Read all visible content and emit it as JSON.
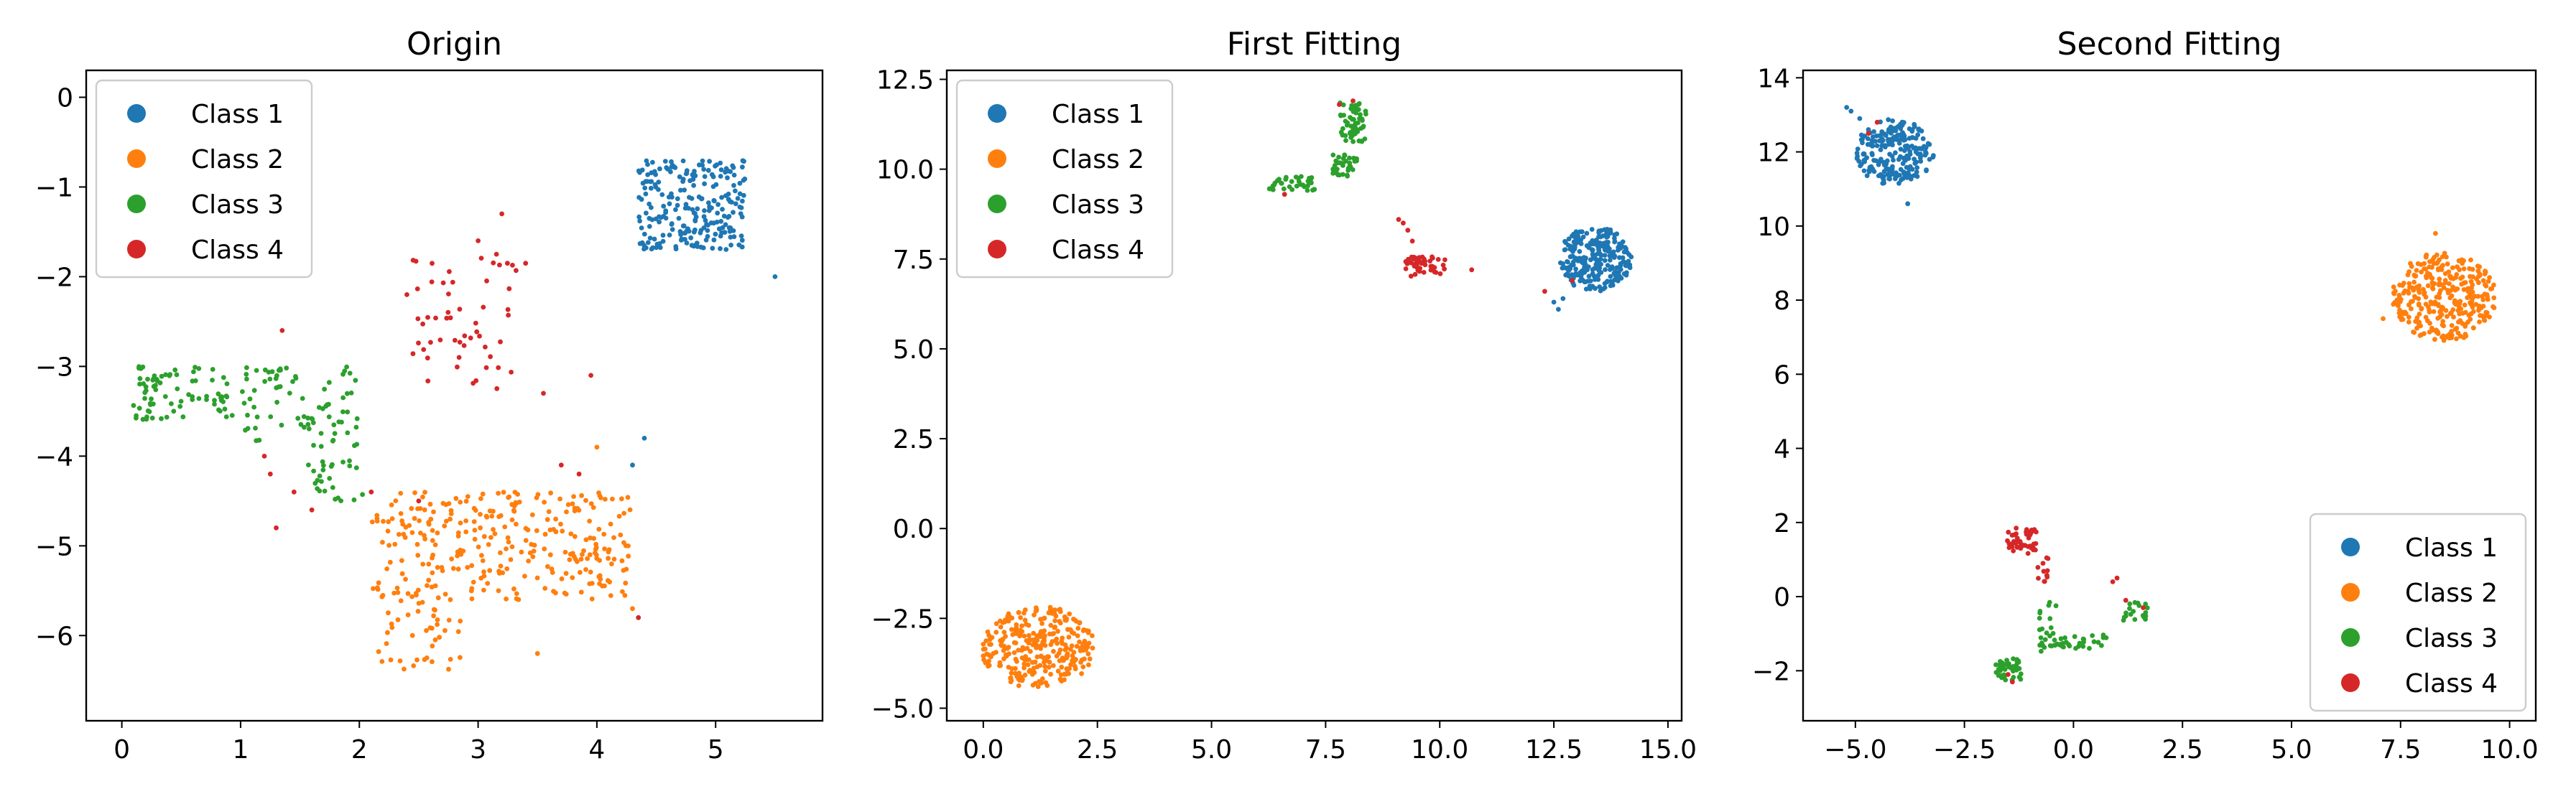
{
  "chart_data": [
    {
      "type": "scatter",
      "title": "Origin",
      "xlim": [
        -0.3,
        5.9
      ],
      "ylim": [
        -6.95,
        0.3
      ],
      "xticks": [
        0,
        1,
        2,
        3,
        4,
        5
      ],
      "xtick_labels": [
        "0",
        "1",
        "2",
        "3",
        "4",
        "5"
      ],
      "yticks": [
        0,
        -1,
        -2,
        -3,
        -4,
        -5,
        -6
      ],
      "ytick_labels": [
        "0",
        "−1",
        "−2",
        "−3",
        "−4",
        "−5",
        "−6"
      ],
      "legend_position": "upper-left",
      "series": [
        {
          "name": "Class 1",
          "color": "#1f77b4",
          "clusters": [
            {
              "cx": 4.8,
              "cy": -1.2,
              "sx": 0.45,
              "sy": 0.5,
              "n": 240,
              "shape": "uniform"
            }
          ],
          "points": [
            [
              5.5,
              -2.0
            ],
            [
              4.3,
              -4.1
            ],
            [
              4.4,
              -3.8
            ]
          ]
        },
        {
          "name": "Class 2",
          "color": "#ff7f0e",
          "clusters": [
            {
              "cx": 3.2,
              "cy": -5.0,
              "sx": 1.1,
              "sy": 0.6,
              "n": 300,
              "shape": "uniform"
            },
            {
              "cx": 2.5,
              "cy": -6.0,
              "sx": 0.35,
              "sy": 0.4,
              "n": 40,
              "shape": "uniform"
            }
          ],
          "points": [
            [
              4.3,
              -5.7
            ],
            [
              3.5,
              -6.2
            ],
            [
              4.0,
              -3.9
            ]
          ]
        },
        {
          "name": "Class 3",
          "color": "#2ca02c",
          "clusters": [
            {
              "cx": 0.5,
              "cy": -3.3,
              "sx": 0.45,
              "sy": 0.3,
              "n": 80,
              "shape": "uniform"
            },
            {
              "cx": 1.5,
              "cy": -3.4,
              "sx": 0.5,
              "sy": 0.5,
              "n": 80,
              "shape": "uniform"
            },
            {
              "cx": 1.8,
              "cy": -4.3,
              "sx": 0.25,
              "sy": 0.25,
              "n": 25,
              "shape": "uniform"
            }
          ],
          "points": []
        },
        {
          "name": "Class 4",
          "color": "#d62728",
          "clusters": [
            {
              "cx": 2.9,
              "cy": -2.5,
              "sx": 0.45,
              "sy": 0.8,
              "n": 55,
              "shape": "uniform"
            }
          ],
          "points": [
            [
              1.2,
              -4.0
            ],
            [
              1.25,
              -4.2
            ],
            [
              1.3,
              -4.8
            ],
            [
              1.45,
              -4.4
            ],
            [
              1.35,
              -2.6
            ],
            [
              2.4,
              -2.2
            ],
            [
              3.2,
              -1.3
            ],
            [
              3.0,
              -1.6
            ],
            [
              3.55,
              -3.3
            ],
            [
              3.95,
              -3.1
            ],
            [
              3.85,
              -4.2
            ],
            [
              4.35,
              -5.8
            ],
            [
              3.7,
              -4.1
            ],
            [
              3.4,
              -1.85
            ],
            [
              2.1,
              -4.4
            ],
            [
              1.6,
              -4.6
            ],
            [
              2.5,
              -4.5
            ]
          ]
        }
      ]
    },
    {
      "type": "scatter",
      "title": "First Fitting",
      "xlim": [
        -0.8,
        15.3
      ],
      "ylim": [
        -5.35,
        12.75
      ],
      "xticks": [
        0,
        2.5,
        5,
        7.5,
        10,
        12.5,
        15
      ],
      "xtick_labels": [
        "0.0",
        "2.5",
        "5.0",
        "7.5",
        "10.0",
        "12.5",
        "15.0"
      ],
      "yticks": [
        -5,
        -2.5,
        0,
        2.5,
        5,
        7.5,
        10,
        12.5
      ],
      "ytick_labels": [
        "−5.0",
        "−2.5",
        "0.0",
        "2.5",
        "5.0",
        "7.5",
        "10.0",
        "12.5"
      ],
      "legend_position": "upper-left",
      "series": [
        {
          "name": "Class 1",
          "color": "#1f77b4",
          "clusters": [
            {
              "cx": 13.4,
              "cy": 7.5,
              "sx": 0.8,
              "sy": 0.9,
              "n": 260,
              "shape": "disk"
            }
          ],
          "points": [
            [
              12.5,
              6.3
            ],
            [
              12.6,
              6.1
            ],
            [
              12.7,
              6.4
            ]
          ]
        },
        {
          "name": "Class 2",
          "color": "#ff7f0e",
          "clusters": [
            {
              "cx": 1.2,
              "cy": -3.3,
              "sx": 1.25,
              "sy": 1.15,
              "n": 300,
              "shape": "disk"
            }
          ],
          "points": []
        },
        {
          "name": "Class 3",
          "color": "#2ca02c",
          "clusters": [
            {
              "cx": 8.1,
              "cy": 11.3,
              "sx": 0.3,
              "sy": 0.55,
              "n": 60,
              "shape": "uniform"
            },
            {
              "cx": 7.9,
              "cy": 10.1,
              "sx": 0.3,
              "sy": 0.3,
              "n": 35,
              "shape": "uniform"
            },
            {
              "cx": 6.8,
              "cy": 9.6,
              "sx": 0.55,
              "sy": 0.2,
              "n": 35,
              "shape": "uniform"
            }
          ],
          "points": []
        },
        {
          "name": "Class 4",
          "color": "#d62728",
          "clusters": [
            {
              "cx": 9.7,
              "cy": 7.3,
              "sx": 0.45,
              "sy": 0.3,
              "n": 45,
              "shape": "uniform"
            }
          ],
          "points": [
            [
              9.2,
              8.5
            ],
            [
              9.3,
              8.3
            ],
            [
              9.1,
              8.6
            ],
            [
              9.4,
              8.0
            ],
            [
              7.8,
              11.8
            ],
            [
              8.1,
              11.9
            ],
            [
              6.6,
              9.3
            ],
            [
              12.3,
              6.6
            ],
            [
              12.9,
              6.9
            ],
            [
              10.7,
              7.2
            ]
          ]
        }
      ]
    },
    {
      "type": "scatter",
      "title": "Second Fitting",
      "xlim": [
        -6.2,
        10.6
      ],
      "ylim": [
        -3.35,
        14.2
      ],
      "xticks": [
        -5,
        -2.5,
        0,
        2.5,
        5,
        7.5,
        10
      ],
      "xtick_labels": [
        "−5.0",
        "−2.5",
        "0.0",
        "2.5",
        "5.0",
        "7.5",
        "10.0"
      ],
      "yticks": [
        -2,
        0,
        2,
        4,
        6,
        8,
        10,
        12,
        14
      ],
      "ytick_labels": [
        "−2",
        "0",
        "2",
        "4",
        "6",
        "8",
        "10",
        "12",
        "14"
      ],
      "legend_position": "lower-right",
      "series": [
        {
          "name": "Class 1",
          "color": "#1f77b4",
          "clusters": [
            {
              "cx": -4.1,
              "cy": 12.0,
              "sx": 0.9,
              "sy": 0.9,
              "n": 220,
              "shape": "disk"
            }
          ],
          "points": [
            [
              -5.1,
              13.1
            ],
            [
              -5.2,
              13.2
            ],
            [
              -4.9,
              12.9
            ],
            [
              -3.8,
              10.6
            ]
          ]
        },
        {
          "name": "Class 2",
          "color": "#ff7f0e",
          "clusters": [
            {
              "cx": 8.5,
              "cy": 8.1,
              "sx": 1.2,
              "sy": 1.2,
              "n": 320,
              "shape": "disk"
            }
          ],
          "points": [
            [
              8.3,
              9.8
            ],
            [
              7.1,
              7.5
            ]
          ]
        },
        {
          "name": "Class 3",
          "color": "#2ca02c",
          "clusters": [
            {
              "cx": -1.5,
              "cy": -1.95,
              "sx": 0.3,
              "sy": 0.3,
              "n": 45,
              "shape": "uniform"
            },
            {
              "cx": -0.6,
              "cy": -0.8,
              "sx": 0.2,
              "sy": 0.7,
              "n": 25,
              "shape": "uniform"
            },
            {
              "cx": 0.2,
              "cy": -1.2,
              "sx": 0.6,
              "sy": 0.2,
              "n": 30,
              "shape": "uniform"
            },
            {
              "cx": 1.4,
              "cy": -0.4,
              "sx": 0.3,
              "sy": 0.25,
              "n": 20,
              "shape": "uniform"
            }
          ],
          "points": []
        },
        {
          "name": "Class 4",
          "color": "#d62728",
          "clusters": [
            {
              "cx": -1.2,
              "cy": 1.5,
              "sx": 0.35,
              "sy": 0.35,
              "n": 50,
              "shape": "uniform"
            },
            {
              "cx": -0.7,
              "cy": 0.7,
              "sx": 0.12,
              "sy": 0.35,
              "n": 12,
              "shape": "uniform"
            }
          ],
          "points": [
            [
              -4.5,
              12.8
            ],
            [
              -4.7,
              12.5
            ],
            [
              -1.4,
              -2.3
            ],
            [
              -1.5,
              -2.1
            ],
            [
              1.6,
              -0.3
            ],
            [
              1.0,
              0.5
            ],
            [
              0.9,
              0.4
            ],
            [
              1.2,
              -0.1
            ]
          ]
        }
      ]
    }
  ]
}
